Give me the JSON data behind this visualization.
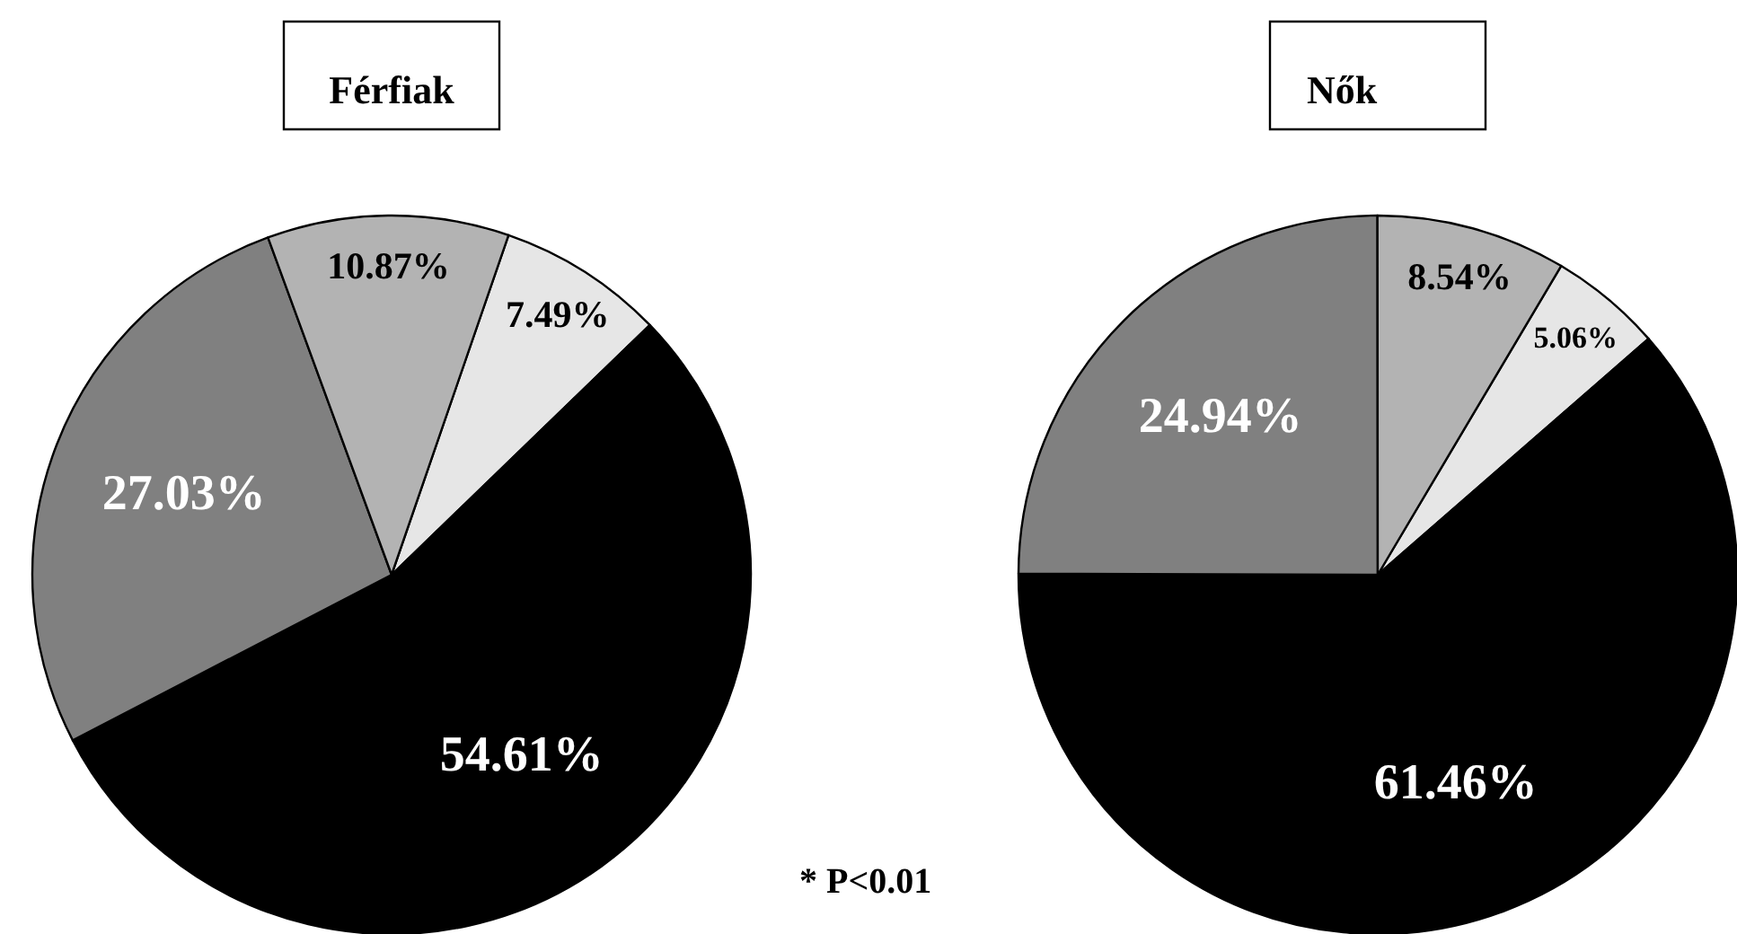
{
  "chart_data": [
    {
      "type": "pie",
      "title": "Férfiak",
      "categories": [
        null,
        null,
        null,
        null
      ],
      "values": [
        7.49,
        54.61,
        27.03,
        10.87
      ],
      "colors": [
        "#e6e6e6",
        "#000000",
        "#808080",
        "#b3b3b3"
      ],
      "value_labels": [
        "7.49%",
        "54.61%",
        "27.03%",
        "10.87%"
      ],
      "annotations": [
        "* P<0.01"
      ]
    },
    {
      "type": "pie",
      "title": "Nők",
      "categories": [
        null,
        null,
        null,
        null
      ],
      "values": [
        5.06,
        61.46,
        24.94,
        8.54
      ],
      "colors": [
        "#e6e6e6",
        "#000000",
        "#808080",
        "#b3b3b3"
      ],
      "value_labels": [
        "5.06%",
        "61.46%",
        "24.94%",
        "8.54%"
      ]
    }
  ]
}
